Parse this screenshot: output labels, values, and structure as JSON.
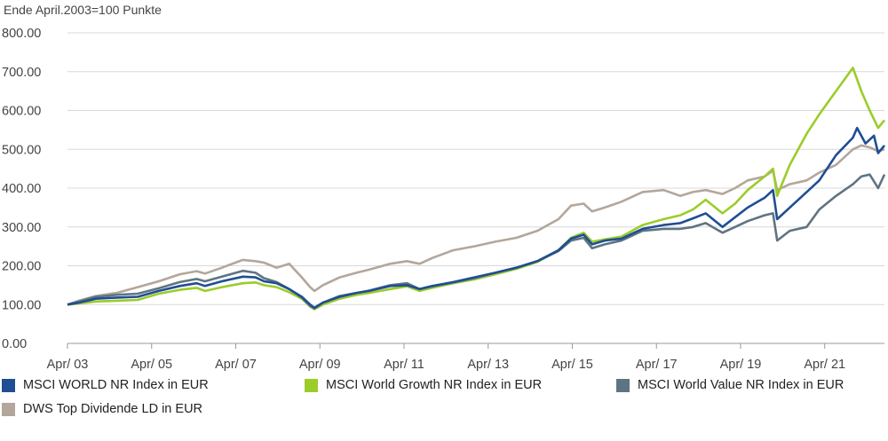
{
  "chart_data": {
    "type": "line",
    "unit_label": "Ende April.2003=100 Punkte",
    "ylim": [
      0,
      800
    ],
    "y_ticks": [
      "0.00",
      "100.00",
      "200.00",
      "300.00",
      "400.00",
      "500.00",
      "600.00",
      "700.00",
      "800.00"
    ],
    "x_ticks": [
      "Apr/ 03",
      "Apr/ 05",
      "Apr/ 07",
      "Apr/ 09",
      "Apr/ 11",
      "Apr/ 13",
      "Apr/ 15",
      "Apr/ 17",
      "Apr/ 19",
      "Apr/ 21"
    ],
    "x_range": [
      2003.33,
      2022.75
    ],
    "grid": "horizontal",
    "legend_position": "bottom",
    "series": [
      {
        "name": "MSCI WORLD NR Index in EUR",
        "color": "#1f4e94",
        "points": [
          [
            2003.33,
            100
          ],
          [
            2003.6,
            105
          ],
          [
            2004.0,
            115
          ],
          [
            2004.5,
            118
          ],
          [
            2005.0,
            120
          ],
          [
            2005.5,
            135
          ],
          [
            2006.0,
            148
          ],
          [
            2006.4,
            155
          ],
          [
            2006.6,
            148
          ],
          [
            2007.0,
            160
          ],
          [
            2007.5,
            172
          ],
          [
            2007.8,
            170
          ],
          [
            2008.0,
            160
          ],
          [
            2008.3,
            155
          ],
          [
            2008.6,
            140
          ],
          [
            2008.9,
            120
          ],
          [
            2009.1,
            100
          ],
          [
            2009.2,
            92
          ],
          [
            2009.4,
            105
          ],
          [
            2009.8,
            120
          ],
          [
            2010.2,
            130
          ],
          [
            2010.5,
            135
          ],
          [
            2011.0,
            148
          ],
          [
            2011.4,
            150
          ],
          [
            2011.7,
            140
          ],
          [
            2012.0,
            148
          ],
          [
            2012.5,
            158
          ],
          [
            2013.0,
            170
          ],
          [
            2013.5,
            182
          ],
          [
            2014.0,
            195
          ],
          [
            2014.5,
            212
          ],
          [
            2015.0,
            240
          ],
          [
            2015.3,
            270
          ],
          [
            2015.6,
            280
          ],
          [
            2015.8,
            255
          ],
          [
            2016.1,
            265
          ],
          [
            2016.5,
            270
          ],
          [
            2017.0,
            295
          ],
          [
            2017.5,
            305
          ],
          [
            2017.9,
            310
          ],
          [
            2018.2,
            322
          ],
          [
            2018.5,
            335
          ],
          [
            2018.9,
            300
          ],
          [
            2019.2,
            325
          ],
          [
            2019.5,
            350
          ],
          [
            2019.9,
            375
          ],
          [
            2020.1,
            395
          ],
          [
            2020.2,
            320
          ],
          [
            2020.5,
            350
          ],
          [
            2020.9,
            390
          ],
          [
            2021.2,
            420
          ],
          [
            2021.6,
            485
          ],
          [
            2022.0,
            530
          ],
          [
            2022.1,
            555
          ],
          [
            2022.3,
            515
          ],
          [
            2022.5,
            535
          ],
          [
            2022.6,
            490
          ],
          [
            2022.75,
            510
          ]
        ]
      },
      {
        "name": "MSCI World Growth NR Index in EUR",
        "color": "#9ccc2a",
        "points": [
          [
            2003.33,
            100
          ],
          [
            2003.6,
            103
          ],
          [
            2004.0,
            108
          ],
          [
            2004.5,
            110
          ],
          [
            2005.0,
            112
          ],
          [
            2005.5,
            128
          ],
          [
            2006.0,
            138
          ],
          [
            2006.4,
            143
          ],
          [
            2006.6,
            135
          ],
          [
            2007.0,
            145
          ],
          [
            2007.5,
            155
          ],
          [
            2007.8,
            157
          ],
          [
            2008.0,
            150
          ],
          [
            2008.3,
            145
          ],
          [
            2008.6,
            132
          ],
          [
            2008.9,
            115
          ],
          [
            2009.1,
            95
          ],
          [
            2009.2,
            88
          ],
          [
            2009.4,
            100
          ],
          [
            2009.8,
            115
          ],
          [
            2010.2,
            125
          ],
          [
            2010.5,
            130
          ],
          [
            2011.0,
            140
          ],
          [
            2011.4,
            147
          ],
          [
            2011.7,
            135
          ],
          [
            2012.0,
            143
          ],
          [
            2012.5,
            155
          ],
          [
            2013.0,
            165
          ],
          [
            2013.5,
            178
          ],
          [
            2014.0,
            192
          ],
          [
            2014.5,
            210
          ],
          [
            2015.0,
            240
          ],
          [
            2015.3,
            272
          ],
          [
            2015.6,
            285
          ],
          [
            2015.8,
            262
          ],
          [
            2016.1,
            268
          ],
          [
            2016.5,
            275
          ],
          [
            2017.0,
            305
          ],
          [
            2017.5,
            320
          ],
          [
            2017.9,
            330
          ],
          [
            2018.2,
            345
          ],
          [
            2018.5,
            370
          ],
          [
            2018.9,
            335
          ],
          [
            2019.2,
            360
          ],
          [
            2019.5,
            395
          ],
          [
            2019.9,
            430
          ],
          [
            2020.1,
            450
          ],
          [
            2020.2,
            380
          ],
          [
            2020.5,
            460
          ],
          [
            2020.9,
            540
          ],
          [
            2021.2,
            590
          ],
          [
            2021.6,
            650
          ],
          [
            2022.0,
            710
          ],
          [
            2022.2,
            650
          ],
          [
            2022.4,
            600
          ],
          [
            2022.6,
            555
          ],
          [
            2022.75,
            575
          ]
        ]
      },
      {
        "name": "MSCI World Value NR Index in EUR",
        "color": "#5f7482",
        "points": [
          [
            2003.33,
            100
          ],
          [
            2003.6,
            108
          ],
          [
            2004.0,
            120
          ],
          [
            2004.5,
            125
          ],
          [
            2005.0,
            128
          ],
          [
            2005.5,
            142
          ],
          [
            2006.0,
            158
          ],
          [
            2006.4,
            166
          ],
          [
            2006.6,
            160
          ],
          [
            2007.0,
            172
          ],
          [
            2007.5,
            187
          ],
          [
            2007.8,
            182
          ],
          [
            2008.0,
            168
          ],
          [
            2008.3,
            158
          ],
          [
            2008.6,
            140
          ],
          [
            2008.9,
            118
          ],
          [
            2009.1,
            96
          ],
          [
            2009.2,
            90
          ],
          [
            2009.4,
            105
          ],
          [
            2009.8,
            122
          ],
          [
            2010.2,
            130
          ],
          [
            2010.5,
            136
          ],
          [
            2011.0,
            150
          ],
          [
            2011.4,
            155
          ],
          [
            2011.7,
            140
          ],
          [
            2012.0,
            147
          ],
          [
            2012.5,
            157
          ],
          [
            2013.0,
            168
          ],
          [
            2013.5,
            182
          ],
          [
            2014.0,
            195
          ],
          [
            2014.5,
            212
          ],
          [
            2015.0,
            238
          ],
          [
            2015.3,
            265
          ],
          [
            2015.6,
            272
          ],
          [
            2015.8,
            245
          ],
          [
            2016.1,
            255
          ],
          [
            2016.5,
            265
          ],
          [
            2017.0,
            290
          ],
          [
            2017.5,
            295
          ],
          [
            2017.9,
            295
          ],
          [
            2018.2,
            300
          ],
          [
            2018.5,
            310
          ],
          [
            2018.9,
            285
          ],
          [
            2019.2,
            300
          ],
          [
            2019.5,
            315
          ],
          [
            2019.9,
            330
          ],
          [
            2020.1,
            335
          ],
          [
            2020.2,
            265
          ],
          [
            2020.5,
            290
          ],
          [
            2020.9,
            300
          ],
          [
            2021.2,
            345
          ],
          [
            2021.6,
            380
          ],
          [
            2022.0,
            410
          ],
          [
            2022.2,
            430
          ],
          [
            2022.4,
            435
          ],
          [
            2022.6,
            400
          ],
          [
            2022.75,
            435
          ]
        ]
      },
      {
        "name": "DWS Top Dividende LD in EUR",
        "color": "#b3a69b",
        "points": [
          [
            2003.33,
            100
          ],
          [
            2003.6,
            110
          ],
          [
            2004.0,
            122
          ],
          [
            2004.5,
            130
          ],
          [
            2005.0,
            145
          ],
          [
            2005.5,
            160
          ],
          [
            2006.0,
            178
          ],
          [
            2006.4,
            186
          ],
          [
            2006.6,
            180
          ],
          [
            2007.0,
            195
          ],
          [
            2007.5,
            215
          ],
          [
            2007.8,
            212
          ],
          [
            2008.0,
            208
          ],
          [
            2008.3,
            195
          ],
          [
            2008.6,
            205
          ],
          [
            2008.9,
            170
          ],
          [
            2009.1,
            145
          ],
          [
            2009.2,
            135
          ],
          [
            2009.4,
            150
          ],
          [
            2009.8,
            170
          ],
          [
            2010.2,
            182
          ],
          [
            2010.5,
            190
          ],
          [
            2011.0,
            205
          ],
          [
            2011.4,
            212
          ],
          [
            2011.7,
            205
          ],
          [
            2012.0,
            220
          ],
          [
            2012.5,
            240
          ],
          [
            2013.0,
            250
          ],
          [
            2013.5,
            262
          ],
          [
            2014.0,
            272
          ],
          [
            2014.5,
            290
          ],
          [
            2015.0,
            320
          ],
          [
            2015.3,
            355
          ],
          [
            2015.6,
            360
          ],
          [
            2015.8,
            340
          ],
          [
            2016.1,
            350
          ],
          [
            2016.5,
            365
          ],
          [
            2017.0,
            390
          ],
          [
            2017.5,
            395
          ],
          [
            2017.9,
            380
          ],
          [
            2018.2,
            390
          ],
          [
            2018.5,
            395
          ],
          [
            2018.9,
            385
          ],
          [
            2019.2,
            400
          ],
          [
            2019.5,
            420
          ],
          [
            2019.9,
            430
          ],
          [
            2020.1,
            445
          ],
          [
            2020.2,
            395
          ],
          [
            2020.5,
            410
          ],
          [
            2020.9,
            420
          ],
          [
            2021.2,
            440
          ],
          [
            2021.6,
            460
          ],
          [
            2022.0,
            500
          ],
          [
            2022.2,
            510
          ],
          [
            2022.4,
            505
          ],
          [
            2022.6,
            495
          ],
          [
            2022.75,
            500
          ]
        ]
      }
    ]
  }
}
